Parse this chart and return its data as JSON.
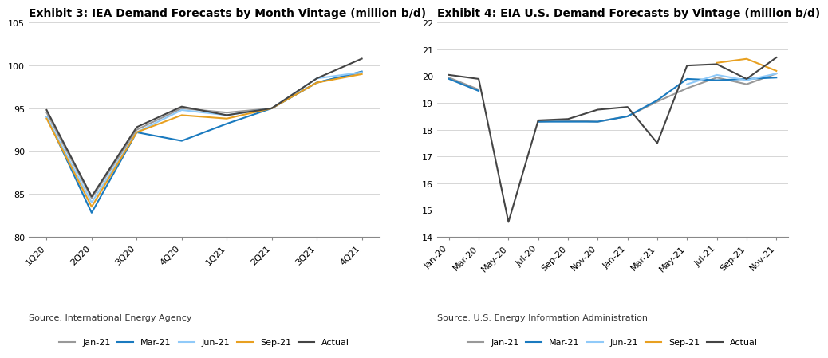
{
  "chart1": {
    "title": "Exhibit 3: IEA Demand Forecasts by Month Vintage (million b/d)",
    "source": "Source: International Energy Agency",
    "x_labels": [
      "1Q20",
      "2Q20",
      "3Q20",
      "4Q20",
      "1Q21",
      "2Q21",
      "3Q21",
      "4Q21"
    ],
    "ylim": [
      80,
      105
    ],
    "yticks": [
      80,
      85,
      90,
      95,
      100,
      105
    ],
    "series": {
      "Jan-21": {
        "color": "#999999",
        "data": [
          94.5,
          84.5,
          92.5,
          95.0,
          94.5,
          95.0,
          98.0,
          99.2
        ]
      },
      "Mar-21": {
        "color": "#1a7abf",
        "data": [
          94.0,
          82.8,
          92.2,
          91.2,
          93.2,
          95.0,
          98.0,
          99.3
        ]
      },
      "Jun-21": {
        "color": "#90CAF9",
        "data": [
          94.0,
          84.0,
          92.2,
          94.8,
          94.2,
          95.0,
          98.5,
          99.2
        ]
      },
      "Sep-21": {
        "color": "#e8a020",
        "data": [
          93.8,
          83.5,
          92.2,
          94.2,
          93.8,
          95.0,
          98.0,
          99.0
        ]
      },
      "Actual": {
        "color": "#444444",
        "data": [
          94.8,
          84.7,
          92.8,
          95.2,
          94.2,
          95.0,
          98.5,
          100.8
        ]
      }
    }
  },
  "chart2": {
    "title": "Exhibit 4: EIA U.S. Demand Forecasts by Vintage (million b/d)",
    "source": "Source: U.S. Energy Information Administration",
    "x_labels": [
      "Jan-20",
      "Mar-20",
      "May-20",
      "Jul-20",
      "Sep-20",
      "Nov-20",
      "Jan-21",
      "Mar-21",
      "May-21",
      "Jul-21",
      "Sep-21",
      "Nov-21"
    ],
    "ylim": [
      14,
      22
    ],
    "yticks": [
      14,
      15,
      16,
      17,
      18,
      19,
      20,
      21,
      22
    ],
    "series": {
      "Jan-21": {
        "color": "#999999",
        "data": [
          19.95,
          19.5,
          null,
          18.3,
          18.35,
          18.3,
          18.5,
          19.05,
          19.55,
          19.95,
          19.7,
          20.1
        ]
      },
      "Mar-21": {
        "color": "#1a7abf",
        "data": [
          19.9,
          19.45,
          null,
          18.3,
          18.3,
          18.3,
          18.5,
          19.1,
          19.9,
          19.85,
          19.9,
          19.95
        ]
      },
      "Jun-21": {
        "color": "#90CAF9",
        "data": [
          null,
          null,
          null,
          null,
          null,
          null,
          null,
          null,
          19.7,
          20.05,
          19.85,
          20.1
        ]
      },
      "Sep-21": {
        "color": "#e8a020",
        "data": [
          null,
          null,
          null,
          null,
          null,
          null,
          null,
          null,
          null,
          20.5,
          20.65,
          20.2
        ]
      },
      "Actual": {
        "color": "#444444",
        "data": [
          20.05,
          19.9,
          14.55,
          18.35,
          18.4,
          18.75,
          18.85,
          17.5,
          20.4,
          20.45,
          19.9,
          20.7
        ]
      }
    }
  },
  "background_color": "#ffffff",
  "grid_color": "#d0d0d0",
  "title_fontsize": 10,
  "tick_fontsize": 8,
  "legend_fontsize": 8,
  "source_fontsize": 8,
  "line_width": 1.5
}
